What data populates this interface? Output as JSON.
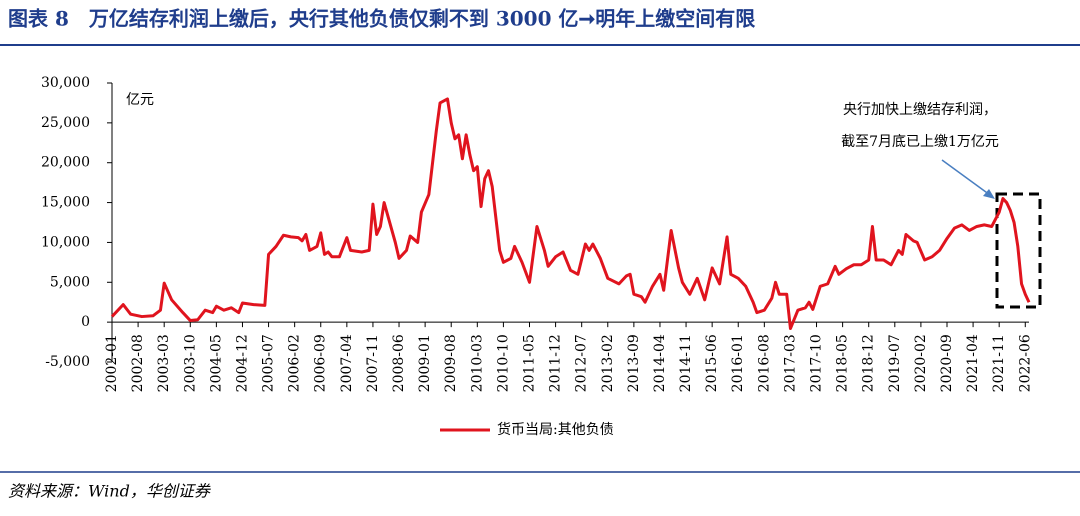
{
  "chart_data": {
    "type": "line",
    "title": "图表 8　万亿结存利润上缴后，央行其他负债仅剩不到 3000 亿➞明年上缴空间有限",
    "unit_label": "亿元",
    "annotation": [
      "央行加快上缴结存利润，",
      "截至7月底已上缴1万亿元"
    ],
    "source": "资料来源：Wind，华创证券",
    "xlim": [
      "2002-01",
      "2022-07"
    ],
    "xticks": [
      "2002-01",
      "2002-08",
      "2003-03",
      "2003-10",
      "2004-05",
      "2004-12",
      "2005-07",
      "2006-02",
      "2006-09",
      "2007-04",
      "2007-11",
      "2008-06",
      "2009-01",
      "2009-08",
      "2010-03",
      "2010-10",
      "2011-05",
      "2011-12",
      "2012-07",
      "2013-02",
      "2013-09",
      "2014-04",
      "2014-11",
      "2015-06",
      "2016-01",
      "2016-08",
      "2017-03",
      "2017-10",
      "2018-05",
      "2018-12",
      "2019-07",
      "2020-02",
      "2020-09",
      "2021-04",
      "2021-11",
      "2022-06"
    ],
    "ylim": [
      -5000,
      30000
    ],
    "yticks": [
      {
        "value": -5000,
        "label": "-5,000"
      },
      0,
      {
        "value": 5000,
        "label": "5,000"
      },
      {
        "value": 10000,
        "label": "10,000"
      },
      {
        "value": 15000,
        "label": "15,000"
      },
      {
        "value": 20000,
        "label": "20,000"
      },
      {
        "value": 25000,
        "label": "25,000"
      },
      {
        "value": 30000,
        "label": "30,000"
      }
    ],
    "legend": "bottom",
    "series": [
      {
        "name": "货币当局:其他负债",
        "color": "#e0141e",
        "x": [
          "2002-01",
          "2002-04",
          "2002-06",
          "2002-09",
          "2002-12",
          "2003-02",
          "2003-03",
          "2003-05",
          "2003-08",
          "2003-10",
          "2003-12",
          "2004-02",
          "2004-04",
          "2004-05",
          "2004-07",
          "2004-09",
          "2004-11",
          "2004-12",
          "2005-03",
          "2005-06",
          "2005-07",
          "2005-09",
          "2005-11",
          "2006-01",
          "2006-03",
          "2006-04",
          "2006-05",
          "2006-06",
          "2006-08",
          "2006-09",
          "2006-10",
          "2006-11",
          "2006-12",
          "2007-02",
          "2007-04",
          "2007-05",
          "2007-08",
          "2007-10",
          "2007-11",
          "2007-12",
          "2008-01",
          "2008-02",
          "2008-05",
          "2008-06",
          "2008-08",
          "2008-09",
          "2008-11",
          "2008-12",
          "2009-02",
          "2009-04",
          "2009-05",
          "2009-07",
          "2009-08",
          "2009-09",
          "2009-10",
          "2009-11",
          "2009-12",
          "2010-01",
          "2010-02",
          "2010-03",
          "2010-04",
          "2010-05",
          "2010-06",
          "2010-07",
          "2010-09",
          "2010-10",
          "2010-12",
          "2011-01",
          "2011-03",
          "2011-05",
          "2011-07",
          "2011-09",
          "2011-10",
          "2011-12",
          "2012-02",
          "2012-04",
          "2012-06",
          "2012-08",
          "2012-09",
          "2012-10",
          "2012-12",
          "2013-02",
          "2013-05",
          "2013-07",
          "2013-08",
          "2013-09",
          "2013-11",
          "2013-12",
          "2014-02",
          "2014-04",
          "2014-05",
          "2014-07",
          "2014-09",
          "2014-10",
          "2014-12",
          "2015-02",
          "2015-04",
          "2015-06",
          "2015-08",
          "2015-10",
          "2015-11",
          "2016-01",
          "2016-03",
          "2016-05",
          "2016-06",
          "2016-08",
          "2016-10",
          "2016-11",
          "2016-12",
          "2017-02",
          "2017-03",
          "2017-05",
          "2017-07",
          "2017-08",
          "2017-09",
          "2017-11",
          "2018-01",
          "2018-03",
          "2018-04",
          "2018-06",
          "2018-08",
          "2018-10",
          "2018-12",
          "2019-01",
          "2019-02",
          "2019-04",
          "2019-06",
          "2019-08",
          "2019-09",
          "2019-10",
          "2019-12",
          "2020-01",
          "2020-03",
          "2020-05",
          "2020-07",
          "2020-09",
          "2020-11",
          "2021-01",
          "2021-03",
          "2021-05",
          "2021-07",
          "2021-09",
          "2021-11",
          "2021-12",
          "2022-01",
          "2022-02",
          "2022-03",
          "2022-04",
          "2022-05",
          "2022-06",
          "2022-07"
        ],
        "values": [
          700,
          2200,
          1000,
          700,
          800,
          1500,
          4900,
          2800,
          1200,
          200,
          300,
          1500,
          1200,
          2000,
          1500,
          1800,
          1200,
          2400,
          2200,
          2100,
          8500,
          9500,
          10900,
          10700,
          10600,
          10200,
          11000,
          9000,
          9500,
          11200,
          8500,
          8800,
          8200,
          8200,
          10600,
          9000,
          8800,
          9000,
          14800,
          11000,
          12000,
          15000,
          10000,
          8000,
          9000,
          10800,
          10000,
          13800,
          16000,
          24000,
          27500,
          28000,
          25000,
          23000,
          23500,
          20500,
          23500,
          21000,
          19000,
          19500,
          14500,
          18000,
          19000,
          17000,
          9000,
          7500,
          8000,
          9500,
          7500,
          5000,
          12000,
          9000,
          7000,
          8200,
          8800,
          6500,
          6000,
          9800,
          9000,
          9800,
          8000,
          5500,
          4800,
          5800,
          6000,
          3500,
          3200,
          2500,
          4500,
          6000,
          4000,
          11500,
          6800,
          5000,
          3500,
          5500,
          2800,
          6800,
          4800,
          10700,
          6000,
          5500,
          4500,
          2500,
          1200,
          1500,
          3000,
          5000,
          3500,
          3500,
          -800,
          1500,
          1800,
          2500,
          1600,
          4500,
          4800,
          7000,
          6000,
          6700,
          7200,
          7200,
          7800,
          12000,
          7800,
          7800,
          7200,
          9000,
          8500,
          11000,
          10200,
          10000,
          7800,
          8200,
          9000,
          10500,
          11800,
          12200,
          11500,
          12000,
          12200,
          12000,
          13800,
          15500,
          15000,
          14000,
          12500,
          9500,
          4800,
          3500,
          2500
        ]
      }
    ]
  }
}
